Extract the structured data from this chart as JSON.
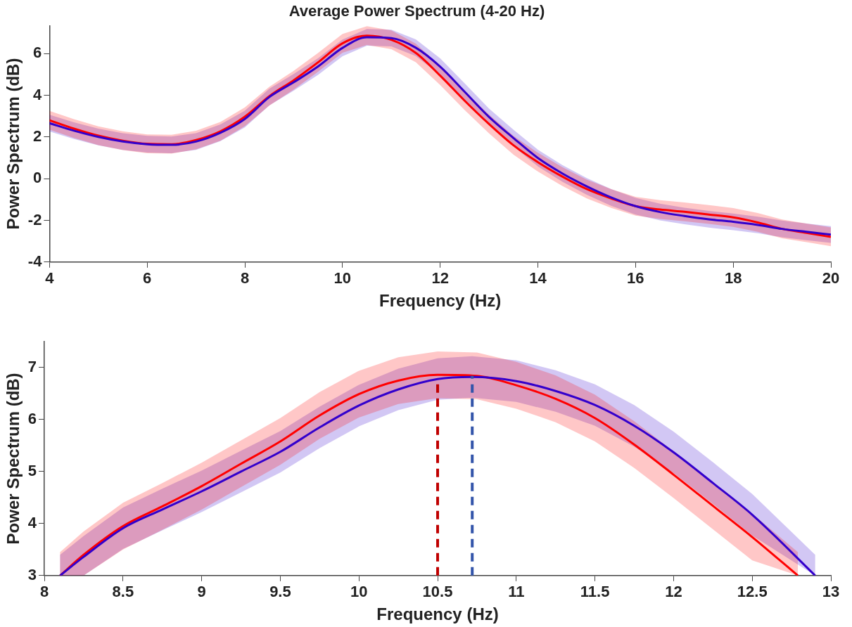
{
  "chart_data": [
    {
      "type": "line",
      "title": "Average Power Spectrum (4-20 Hz)",
      "xlabel": "Frequency (Hz)",
      "ylabel": "Power Spectrum (dB)",
      "xlim": [
        4,
        20
      ],
      "xticks": [
        4,
        6,
        8,
        10,
        12,
        14,
        16,
        18,
        20
      ],
      "ylim": [
        -4,
        7.34
      ],
      "yticks": [
        -4,
        -2,
        0,
        2,
        4,
        6
      ],
      "grid": false,
      "legend": false,
      "marker": "none",
      "line_style": "solid",
      "x": [
        4,
        4.5,
        5,
        5.5,
        6,
        6.5,
        7,
        7.5,
        8,
        8.5,
        9,
        9.5,
        10,
        10.5,
        11,
        11.5,
        12,
        12.5,
        13,
        13.5,
        14,
        14.5,
        15,
        15.5,
        16,
        16.5,
        17,
        17.5,
        18,
        18.5,
        19,
        19.5,
        20
      ],
      "series": [
        {
          "color": "#3300cc",
          "values": [
            2.66,
            2.3,
            2.0,
            1.78,
            1.65,
            1.62,
            1.78,
            2.2,
            2.86,
            3.91,
            4.62,
            5.38,
            6.27,
            6.78,
            6.74,
            6.28,
            5.37,
            4.17,
            2.96,
            1.95,
            0.99,
            0.25,
            -0.37,
            -0.9,
            -1.32,
            -1.6,
            -1.79,
            -1.95,
            -2.07,
            -2.22,
            -2.41,
            -2.55,
            -2.68
          ],
          "lower": [
            2.26,
            1.9,
            1.6,
            1.38,
            1.25,
            1.22,
            1.38,
            1.8,
            2.46,
            3.51,
            4.22,
            4.98,
            5.87,
            6.38,
            6.34,
            5.88,
            4.97,
            3.77,
            2.56,
            1.55,
            0.59,
            -0.15,
            -0.77,
            -1.3,
            -1.72,
            -2.0,
            -2.19,
            -2.35,
            -2.47,
            -2.62,
            -2.81,
            -2.95,
            -3.08
          ],
          "upper": [
            3.06,
            2.7,
            2.4,
            2.18,
            2.05,
            2.02,
            2.18,
            2.6,
            3.26,
            4.31,
            5.02,
            5.78,
            6.67,
            7.18,
            7.14,
            6.68,
            5.77,
            4.57,
            3.36,
            2.35,
            1.39,
            0.65,
            0.03,
            -0.5,
            -0.92,
            -1.2,
            -1.39,
            -1.55,
            -1.67,
            -1.82,
            -2.01,
            -2.15,
            -2.28
          ]
        },
        {
          "color": "#ff0000",
          "values": [
            2.8,
            2.4,
            2.06,
            1.82,
            1.67,
            1.65,
            1.85,
            2.27,
            2.97,
            3.95,
            4.72,
            5.58,
            6.49,
            6.86,
            6.66,
            6.03,
            4.94,
            3.74,
            2.62,
            1.6,
            0.79,
            0.1,
            -0.5,
            -0.95,
            -1.32,
            -1.48,
            -1.59,
            -1.72,
            -1.86,
            -2.1,
            -2.41,
            -2.6,
            -2.79
          ],
          "lower": [
            2.35,
            1.95,
            1.61,
            1.37,
            1.22,
            1.2,
            1.4,
            1.82,
            2.52,
            3.5,
            4.27,
            5.13,
            6.04,
            6.41,
            6.21,
            5.58,
            4.49,
            3.29,
            2.17,
            1.15,
            0.34,
            -0.35,
            -0.95,
            -1.4,
            -1.77,
            -1.93,
            -2.04,
            -2.17,
            -2.31,
            -2.55,
            -2.86,
            -3.05,
            -3.24
          ],
          "upper": [
            3.25,
            2.85,
            2.51,
            2.27,
            2.12,
            2.1,
            2.3,
            2.72,
            3.42,
            4.4,
            5.17,
            6.03,
            6.94,
            7.31,
            7.11,
            6.48,
            5.39,
            4.19,
            3.07,
            2.05,
            1.24,
            0.55,
            -0.05,
            -0.5,
            -0.87,
            -1.03,
            -1.14,
            -1.27,
            -1.41,
            -1.65,
            -1.96,
            -2.15,
            -2.34
          ]
        }
      ]
    },
    {
      "type": "line",
      "xlabel": "Frequency (Hz)",
      "ylabel": "Power Spectrum (dB)",
      "xlim": [
        8,
        13
      ],
      "xticks": [
        8,
        8.5,
        9,
        9.5,
        10,
        10.5,
        11,
        11.5,
        12,
        12.5,
        13
      ],
      "ylim": [
        3,
        7.5
      ],
      "yticks": [
        3,
        4,
        5,
        6,
        7
      ],
      "grid": false,
      "legend": false,
      "marker": "none",
      "line_style": "solid",
      "series": [
        {
          "color": "#3300cc",
          "x": [
            8.1,
            8.25,
            8.5,
            8.75,
            9,
            9.25,
            9.5,
            9.75,
            10,
            10.25,
            10.5,
            10.72,
            11,
            11.25,
            11.5,
            11.75,
            12,
            12.25,
            12.5,
            12.9
          ],
          "values": [
            3.0,
            3.36,
            3.91,
            4.27,
            4.62,
            5.0,
            5.38,
            5.85,
            6.27,
            6.58,
            6.78,
            6.82,
            6.74,
            6.55,
            6.28,
            5.88,
            5.37,
            4.78,
            4.17,
            3.0
          ],
          "lower": [
            3.0,
            3.0,
            3.51,
            3.87,
            4.22,
            4.6,
            4.98,
            5.45,
            5.87,
            6.18,
            6.38,
            6.42,
            6.34,
            6.15,
            5.88,
            5.48,
            4.97,
            4.38,
            3.77,
            3.0
          ],
          "upper": [
            3.4,
            3.76,
            4.31,
            4.67,
            5.02,
            5.4,
            5.78,
            6.25,
            6.67,
            6.98,
            7.18,
            7.22,
            7.14,
            6.95,
            6.68,
            6.28,
            5.77,
            5.18,
            4.57,
            3.4
          ]
        },
        {
          "color": "#ff0000",
          "x": [
            8.1,
            8.25,
            8.5,
            8.75,
            9,
            9.25,
            9.5,
            9.75,
            10,
            10.25,
            10.5,
            10.75,
            11,
            11.25,
            11.5,
            11.75,
            12,
            12.25,
            12.5,
            12.79
          ],
          "values": [
            3.0,
            3.4,
            3.95,
            4.33,
            4.72,
            5.15,
            5.58,
            6.08,
            6.49,
            6.75,
            6.86,
            6.84,
            6.66,
            6.4,
            6.03,
            5.52,
            4.94,
            4.34,
            3.74,
            3.0
          ],
          "lower": [
            3.0,
            3.0,
            3.5,
            3.88,
            4.27,
            4.7,
            5.13,
            5.63,
            6.04,
            6.3,
            6.41,
            6.39,
            6.21,
            5.95,
            5.58,
            5.07,
            4.49,
            3.89,
            3.29,
            3.0
          ],
          "upper": [
            3.45,
            3.85,
            4.4,
            4.78,
            5.17,
            5.6,
            6.03,
            6.53,
            6.94,
            7.2,
            7.31,
            7.29,
            7.11,
            6.85,
            6.48,
            5.97,
            5.39,
            4.79,
            4.19,
            3.45
          ]
        }
      ],
      "ref_lines": [
        {
          "axis": "x",
          "value": 10.5,
          "color": "#c00000",
          "line_style": "dashed"
        },
        {
          "axis": "x",
          "value": 10.72,
          "color": "#3355aa",
          "line_style": "dashed"
        }
      ]
    }
  ]
}
